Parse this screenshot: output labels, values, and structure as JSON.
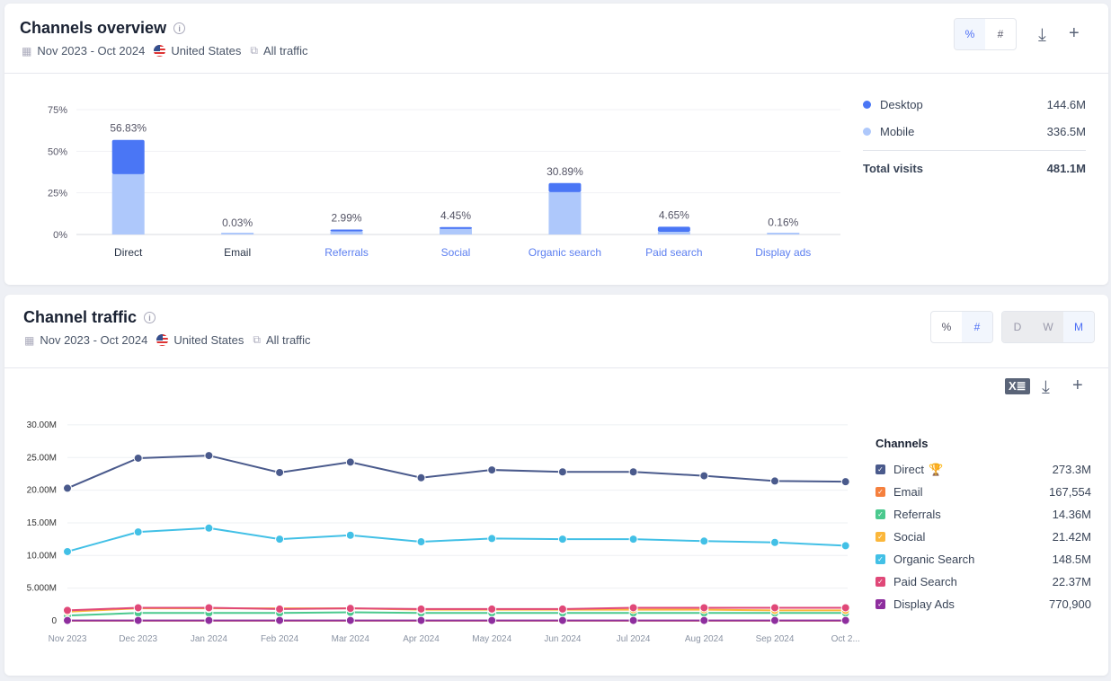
{
  "overview": {
    "title": "Channels overview",
    "date": "Nov 2023 - Oct 2024",
    "country": "United States",
    "traffic": "All traffic",
    "toggle": [
      "%",
      "#"
    ],
    "legend": [
      {
        "label": "Desktop",
        "value": "144.6M",
        "color": "#4a76f5"
      },
      {
        "label": "Mobile",
        "value": "336.5M",
        "color": "#aec8fb"
      }
    ],
    "total_label": "Total visits",
    "total_value": "481.1M"
  },
  "traffic": {
    "title": "Channel traffic",
    "date": "Nov 2023 - Oct 2024",
    "country": "United States",
    "traffic": "All traffic",
    "toggle": [
      "%",
      "#"
    ],
    "granularity": [
      "D",
      "W",
      "M"
    ],
    "legend_title": "Channels"
  },
  "chart_data": [
    {
      "type": "bar",
      "stacked": true,
      "yticks": [
        "0%",
        "25%",
        "50%",
        "75%"
      ],
      "ylim": [
        0,
        75
      ],
      "categories": [
        "Direct",
        "Email",
        "Referrals",
        "Social",
        "Organic search",
        "Paid search",
        "Display ads"
      ],
      "labels": [
        "56.83%",
        "0.03%",
        "2.99%",
        "4.45%",
        "30.89%",
        "4.65%",
        "0.16%"
      ],
      "series": [
        {
          "name": "Mobile",
          "color": "#aec8fb",
          "values": [
            36.2,
            0.03,
            1.8,
            3.3,
            25.4,
            1.6,
            0.15
          ]
        },
        {
          "name": "Desktop",
          "color": "#4a76f5",
          "values": [
            20.63,
            0,
            1.19,
            1.15,
            5.49,
            3.05,
            0.01
          ]
        }
      ]
    },
    {
      "type": "line",
      "ylim": [
        0,
        30
      ],
      "yticks": [
        "0",
        "5.000M",
        "10.00M",
        "15.00M",
        "20.00M",
        "25.00M",
        "30.00M"
      ],
      "x": [
        "Nov 2023",
        "Dec 2023",
        "Jan 2024",
        "Feb 2024",
        "Mar 2024",
        "Apr 2024",
        "May 2024",
        "Jun 2024",
        "Jul 2024",
        "Aug 2024",
        "Sep 2024",
        "Oct 2..."
      ],
      "series": [
        {
          "name": "Direct",
          "total": "273.3M",
          "color": "#4a5a8c",
          "values": [
            20.3,
            24.9,
            25.3,
            22.7,
            24.3,
            21.9,
            23.1,
            22.8,
            22.8,
            22.2,
            21.4,
            21.3
          ]
        },
        {
          "name": "Email",
          "total": "167,554",
          "color": "#f5803e",
          "values": [
            0.014,
            0.014,
            0.014,
            0.014,
            0.014,
            0.014,
            0.014,
            0.014,
            0.014,
            0.014,
            0.014,
            0.014
          ]
        },
        {
          "name": "Referrals",
          "total": "14.36M",
          "color": "#4bc98e",
          "values": [
            0.8,
            1.2,
            1.2,
            1.2,
            1.3,
            1.2,
            1.2,
            1.2,
            1.2,
            1.2,
            1.2,
            1.2
          ]
        },
        {
          "name": "Social",
          "total": "21.42M",
          "color": "#fbb73b",
          "values": [
            1.4,
            1.9,
            1.9,
            1.9,
            1.9,
            1.7,
            1.7,
            1.7,
            1.7,
            1.7,
            1.6,
            1.6
          ]
        },
        {
          "name": "Organic Search",
          "total": "148.5M",
          "color": "#42c0e6",
          "values": [
            10.6,
            13.6,
            14.2,
            12.5,
            13.1,
            12.1,
            12.6,
            12.5,
            12.5,
            12.2,
            12.0,
            11.5
          ]
        },
        {
          "name": "Paid Search",
          "total": "22.37M",
          "color": "#e04878",
          "values": [
            1.6,
            2.0,
            2.0,
            1.8,
            1.9,
            1.8,
            1.8,
            1.8,
            2.0,
            2.0,
            2.0,
            2.0
          ]
        },
        {
          "name": "Display Ads",
          "total": "770,900",
          "color": "#8e2e9e",
          "values": [
            0.06,
            0.06,
            0.06,
            0.06,
            0.06,
            0.06,
            0.06,
            0.06,
            0.06,
            0.06,
            0.06,
            0.06
          ]
        }
      ]
    }
  ]
}
